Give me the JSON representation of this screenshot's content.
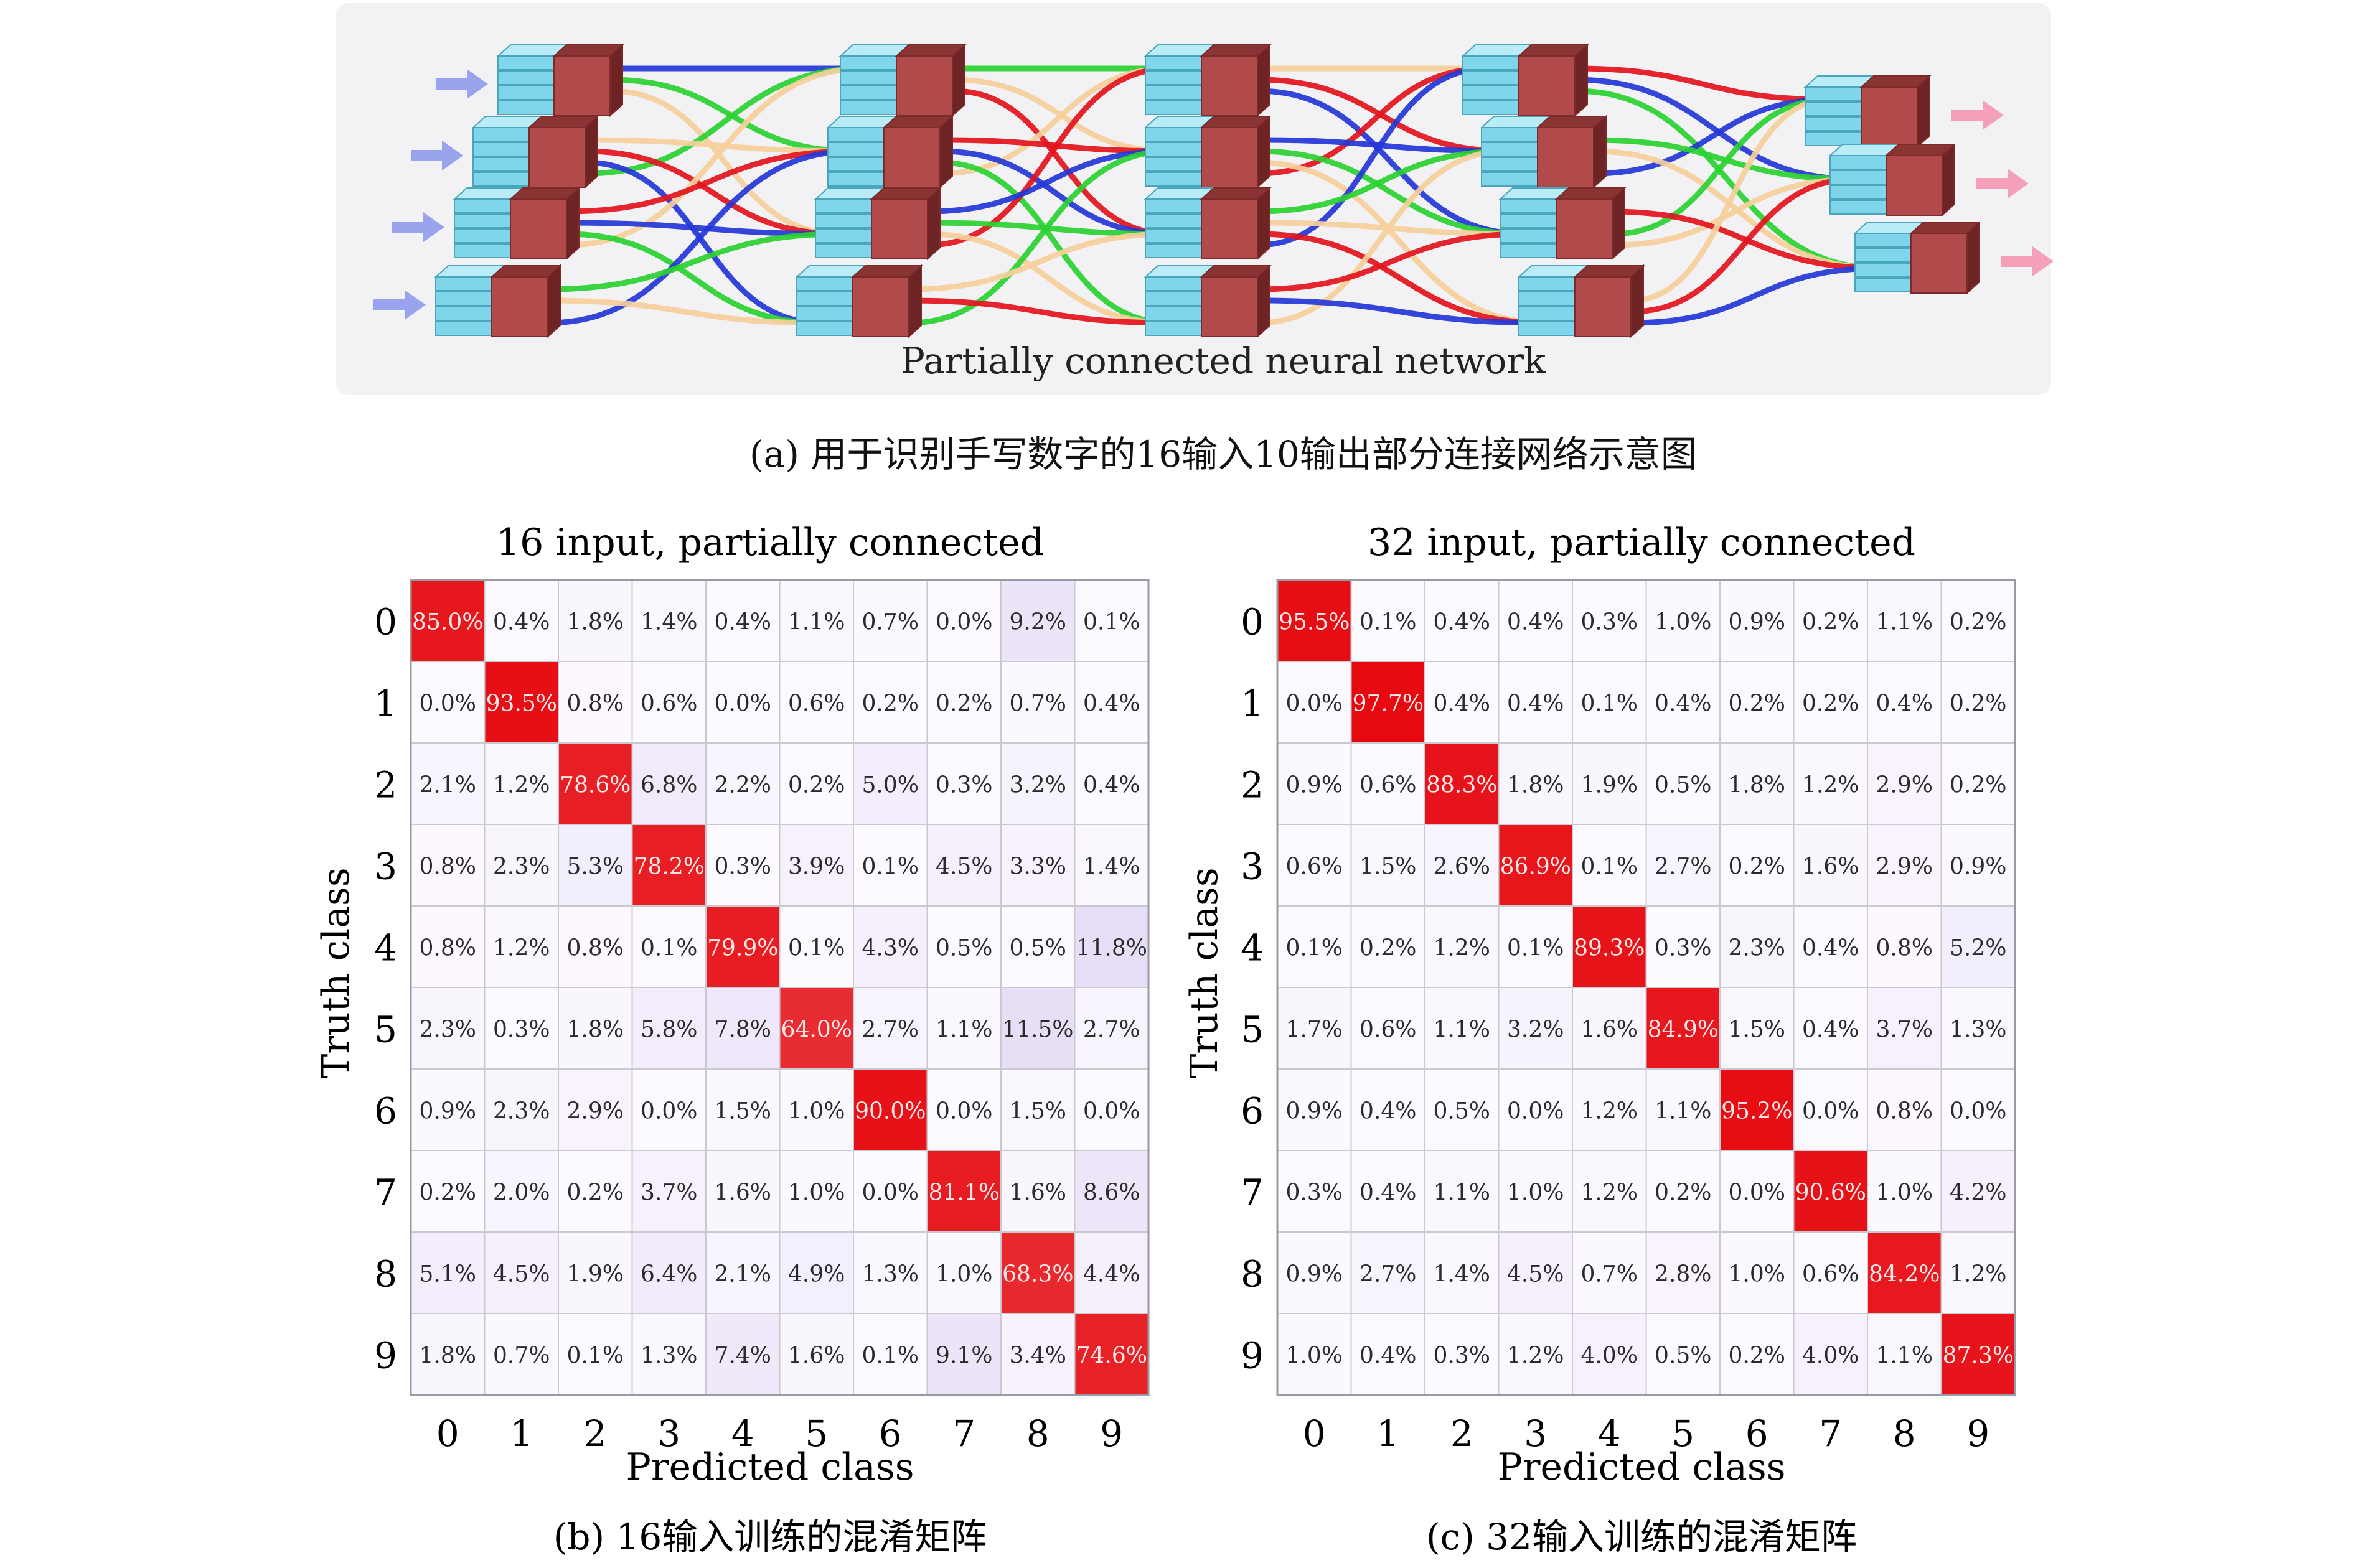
{
  "panel_a": {
    "overlay_label": "Partially connected neural network",
    "caption": "(a) 用于识别手写数字的16输入10输出部分连接网络示意图",
    "colors": {
      "background": "#f2f2f4",
      "input_face": "#7fd6ea",
      "output_face": "#b14a4a",
      "input_arrow": "#9aa4ee",
      "output_arrow": "#f4a0b8",
      "links": [
        "#2436d6",
        "#2ad130",
        "#f6cf9a",
        "#e3141c"
      ]
    }
  },
  "chart_data": [
    {
      "type": "heatmap",
      "title": "16 input, partially connected",
      "xlabel": "Predicted class",
      "ylabel": "Truth class",
      "x_tick_labels": [
        "0",
        "1",
        "2",
        "3",
        "4",
        "5",
        "6",
        "7",
        "8",
        "9"
      ],
      "y_tick_labels": [
        "0",
        "1",
        "2",
        "3",
        "4",
        "5",
        "6",
        "7",
        "8",
        "9"
      ],
      "caption": "(b) 16输入训练的混淆矩阵",
      "unit": "%",
      "values": [
        [
          85.0,
          0.4,
          1.8,
          1.4,
          0.4,
          1.1,
          0.7,
          0.0,
          9.2,
          0.1
        ],
        [
          0.0,
          93.5,
          0.8,
          0.6,
          0.0,
          0.6,
          0.2,
          0.2,
          0.7,
          0.4
        ],
        [
          2.1,
          1.2,
          78.6,
          6.8,
          2.2,
          0.2,
          5.0,
          0.3,
          3.2,
          0.4
        ],
        [
          0.8,
          2.3,
          5.3,
          78.2,
          0.3,
          3.9,
          0.1,
          4.5,
          3.3,
          1.4
        ],
        [
          0.8,
          1.2,
          0.8,
          0.1,
          79.9,
          0.1,
          4.3,
          0.5,
          0.5,
          11.8
        ],
        [
          2.3,
          0.3,
          1.8,
          5.8,
          7.8,
          64.0,
          2.7,
          1.1,
          11.5,
          2.7
        ],
        [
          0.9,
          2.3,
          2.9,
          0.0,
          1.5,
          1.0,
          90.0,
          0.0,
          1.5,
          0.0
        ],
        [
          0.2,
          2.0,
          0.2,
          3.7,
          1.6,
          1.0,
          0.0,
          81.1,
          1.6,
          8.6
        ],
        [
          5.1,
          4.5,
          1.9,
          6.4,
          2.1,
          4.9,
          1.3,
          1.0,
          68.3,
          4.4
        ],
        [
          1.8,
          0.7,
          0.1,
          1.3,
          7.4,
          1.6,
          0.1,
          9.1,
          3.4,
          74.6
        ]
      ]
    },
    {
      "type": "heatmap",
      "title": "32 input, partially connected",
      "xlabel": "Predicted class",
      "ylabel": "Truth class",
      "x_tick_labels": [
        "0",
        "1",
        "2",
        "3",
        "4",
        "5",
        "6",
        "7",
        "8",
        "9"
      ],
      "y_tick_labels": [
        "0",
        "1",
        "2",
        "3",
        "4",
        "5",
        "6",
        "7",
        "8",
        "9"
      ],
      "caption": "(c) 32输入训练的混淆矩阵",
      "unit": "%",
      "values": [
        [
          95.5,
          0.1,
          0.4,
          0.4,
          0.3,
          1.0,
          0.9,
          0.2,
          1.1,
          0.2
        ],
        [
          0.0,
          97.7,
          0.4,
          0.4,
          0.1,
          0.4,
          0.2,
          0.2,
          0.4,
          0.2
        ],
        [
          0.9,
          0.6,
          88.3,
          1.8,
          1.9,
          0.5,
          1.8,
          1.2,
          2.9,
          0.2
        ],
        [
          0.6,
          1.5,
          2.6,
          86.9,
          0.1,
          2.7,
          0.2,
          1.6,
          2.9,
          0.9
        ],
        [
          0.1,
          0.2,
          1.2,
          0.1,
          89.3,
          0.3,
          2.3,
          0.4,
          0.8,
          5.2
        ],
        [
          1.7,
          0.6,
          1.1,
          3.2,
          1.6,
          84.9,
          1.5,
          0.4,
          3.7,
          1.3
        ],
        [
          0.9,
          0.4,
          0.5,
          0.0,
          1.2,
          1.1,
          95.2,
          0.0,
          0.8,
          0.0
        ],
        [
          0.3,
          0.4,
          1.1,
          1.0,
          1.2,
          0.2,
          0.0,
          90.6,
          1.0,
          4.2
        ],
        [
          0.9,
          2.7,
          1.4,
          4.5,
          0.7,
          2.8,
          1.0,
          0.6,
          84.2,
          1.2
        ],
        [
          1.0,
          0.4,
          0.3,
          1.2,
          4.0,
          0.5,
          0.2,
          4.0,
          1.1,
          87.3
        ]
      ]
    }
  ]
}
